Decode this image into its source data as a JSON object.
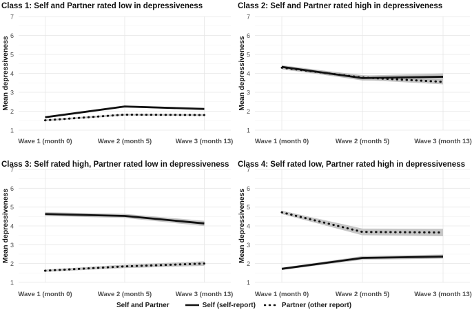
{
  "chart_data": [
    {
      "type": "line",
      "title": "Class 1: Self and Partner rated low in depressiveness",
      "categories": [
        "Wave 1 (month 0)",
        "Wave 2 (month 5)",
        "Wave 3 (month 13)"
      ],
      "ylabel": "Mean depressiveness",
      "xlabel": "",
      "ylim": [
        1,
        7
      ],
      "yticks": [
        1,
        2,
        3,
        4,
        5,
        6,
        7
      ],
      "grid": true,
      "series": [
        {
          "name": "Self (self-report)",
          "style": "solid",
          "values": [
            1.68,
            2.25,
            2.12
          ],
          "ci": [
            [
              1.63,
              1.73
            ],
            [
              2.2,
              2.3
            ],
            [
              2.07,
              2.17
            ]
          ]
        },
        {
          "name": "Partner (other report)",
          "style": "dotted",
          "values": [
            1.52,
            1.82,
            1.8
          ],
          "ci": [
            [
              1.47,
              1.57
            ],
            [
              1.77,
              1.87
            ],
            [
              1.75,
              1.85
            ]
          ]
        }
      ]
    },
    {
      "type": "line",
      "title": "Class 2: Self and Partner rated high in depressiveness",
      "categories": [
        "Wave 1 (month 0)",
        "Wave 2 (month 5)",
        "Wave 3 (month 13)"
      ],
      "ylabel": "Mean depressiveness",
      "xlabel": "",
      "ylim": [
        1,
        7
      ],
      "yticks": [
        1,
        2,
        3,
        4,
        5,
        6,
        7
      ],
      "grid": true,
      "series": [
        {
          "name": "Self (self-report)",
          "style": "solid",
          "values": [
            4.34,
            3.75,
            3.82
          ],
          "ci": [
            [
              4.25,
              4.43
            ],
            [
              3.62,
              3.88
            ],
            [
              3.64,
              4.0
            ]
          ]
        },
        {
          "name": "Partner (other report)",
          "style": "dotted",
          "values": [
            4.3,
            3.78,
            3.55
          ],
          "ci": [
            [
              4.21,
              4.39
            ],
            [
              3.65,
              3.91
            ],
            [
              3.42,
              3.68
            ]
          ]
        }
      ]
    },
    {
      "type": "line",
      "title": "Class 3: Self rated high, Partner rated low in depressiveness",
      "categories": [
        "Wave 1 (month 0)",
        "Wave 2 (month 5)",
        "Wave 3 (month 13)"
      ],
      "ylabel": "Mean depressiveness",
      "xlabel": "",
      "ylim": [
        1,
        7
      ],
      "yticks": [
        1,
        2,
        3,
        4,
        5,
        6,
        7
      ],
      "grid": true,
      "series": [
        {
          "name": "Self (self-report)",
          "style": "solid",
          "values": [
            4.63,
            4.53,
            4.13
          ],
          "ci": [
            [
              4.53,
              4.73
            ],
            [
              4.42,
              4.64
            ],
            [
              3.99,
              4.27
            ]
          ]
        },
        {
          "name": "Partner (other report)",
          "style": "dotted",
          "values": [
            1.62,
            1.85,
            2.0
          ],
          "ci": [
            [
              1.56,
              1.68
            ],
            [
              1.76,
              1.94
            ],
            [
              1.88,
              2.12
            ]
          ]
        }
      ]
    },
    {
      "type": "line",
      "title": "Class 4: Self rated low, Partner rated high in depressiveness",
      "categories": [
        "Wave 1 (month 0)",
        "Wave 2 (month 5)",
        "Wave 3 (month 13)"
      ],
      "ylabel": "Mean depressiveness",
      "xlabel": "",
      "ylim": [
        1,
        7
      ],
      "yticks": [
        1,
        2,
        3,
        4,
        5,
        6,
        7
      ],
      "grid": true,
      "series": [
        {
          "name": "Self (self-report)",
          "style": "solid",
          "values": [
            1.72,
            2.3,
            2.37
          ],
          "ci": [
            [
              1.66,
              1.78
            ],
            [
              2.2,
              2.4
            ],
            [
              2.26,
              2.48
            ]
          ]
        },
        {
          "name": "Partner (other report)",
          "style": "dotted",
          "values": [
            4.72,
            3.68,
            3.65
          ],
          "ci": [
            [
              4.63,
              4.81
            ],
            [
              3.5,
              3.86
            ],
            [
              3.45,
              3.85
            ]
          ]
        }
      ]
    }
  ],
  "legend": {
    "title": "Self and Partner",
    "self_label": "Self (self-report)",
    "partner_label": "Partner (other report)",
    "position": "bottom"
  },
  "colors": {
    "line": "#111111",
    "ribbon": "#bdbdbd",
    "grid": "#e6e6e6",
    "axis_text": "#4d4d4d"
  }
}
